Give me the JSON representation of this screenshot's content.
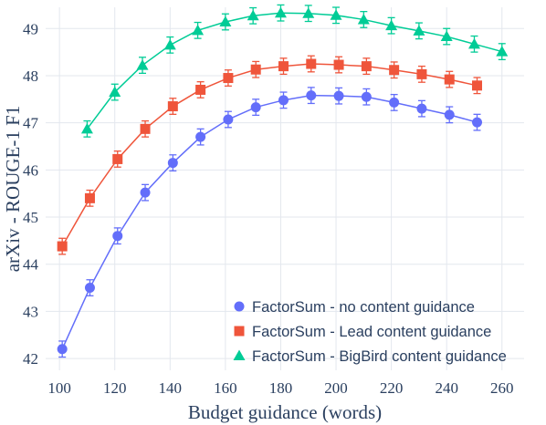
{
  "chart_data": {
    "type": "line",
    "title": "",
    "xlabel": "Budget guidance (words)",
    "ylabel": "arXiv - ROUGE-1 F1",
    "xlim": [
      95,
      268
    ],
    "ylim": [
      41.75,
      49.45
    ],
    "xticks": [
      100,
      120,
      140,
      160,
      180,
      200,
      220,
      240,
      260
    ],
    "yticks": [
      42,
      43,
      44,
      45,
      46,
      47,
      48,
      49
    ],
    "grid": true,
    "legend_position": "bottom-right",
    "series": [
      {
        "name": "FactorSum - no content guidance",
        "color": "#636efa",
        "marker": "circle",
        "x": [
          101,
          111,
          121,
          131,
          141,
          151,
          161,
          171,
          181,
          191,
          201,
          211,
          221,
          231,
          241,
          251
        ],
        "y": [
          42.2,
          43.5,
          44.6,
          45.52,
          46.15,
          46.7,
          47.07,
          47.33,
          47.48,
          47.58,
          47.57,
          47.55,
          47.43,
          47.3,
          47.17,
          47.01
        ],
        "err": [
          0.17,
          0.17,
          0.17,
          0.17,
          0.17,
          0.17,
          0.17,
          0.17,
          0.17,
          0.17,
          0.17,
          0.17,
          0.17,
          0.17,
          0.17,
          0.17
        ]
      },
      {
        "name": "FactorSum - Lead content guidance",
        "color": "#ef553b",
        "marker": "square",
        "x": [
          101,
          111,
          121,
          131,
          141,
          151,
          161,
          171,
          181,
          191,
          201,
          211,
          221,
          231,
          241,
          251
        ],
        "y": [
          44.38,
          45.4,
          46.23,
          46.87,
          47.35,
          47.7,
          47.95,
          48.13,
          48.2,
          48.25,
          48.23,
          48.2,
          48.12,
          48.03,
          47.92,
          47.79
        ],
        "err": [
          0.17,
          0.17,
          0.17,
          0.17,
          0.17,
          0.17,
          0.17,
          0.17,
          0.17,
          0.17,
          0.17,
          0.17,
          0.17,
          0.17,
          0.17,
          0.17
        ]
      },
      {
        "name": "FactorSum - BigBird content guidance",
        "color": "#00cc96",
        "marker": "triangle",
        "x": [
          110,
          120,
          130,
          140,
          150,
          160,
          170,
          180,
          190,
          200,
          210,
          220,
          230,
          240,
          250,
          260
        ],
        "y": [
          46.87,
          47.65,
          48.22,
          48.65,
          48.96,
          49.14,
          49.27,
          49.33,
          49.32,
          49.28,
          49.19,
          49.06,
          48.95,
          48.83,
          48.67,
          48.51
        ],
        "err": [
          0.17,
          0.17,
          0.17,
          0.17,
          0.17,
          0.17,
          0.17,
          0.17,
          0.17,
          0.17,
          0.17,
          0.17,
          0.17,
          0.17,
          0.17,
          0.17
        ]
      }
    ]
  }
}
